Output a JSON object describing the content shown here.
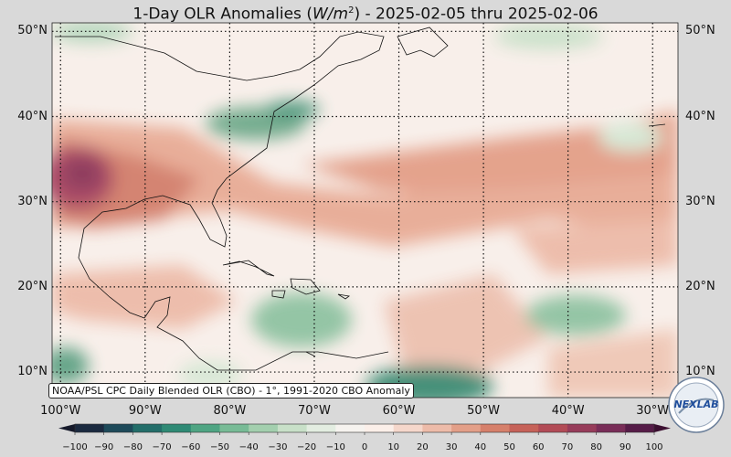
{
  "title_text": "1-Day OLR Anomalies (",
  "title_unit_base": "W/m",
  "title_unit_exp": "2",
  "title_rest": ") - 2025-02-05 thru 2025-02-06",
  "map": {
    "lat_labels": [
      "50°N",
      "40°N",
      "30°N",
      "20°N",
      "10°N"
    ],
    "lat_values": [
      50,
      40,
      30,
      20,
      10
    ],
    "lon_labels": [
      "100°W",
      "90°W",
      "80°W",
      "70°W",
      "60°W",
      "50°W",
      "40°W",
      "30°W"
    ],
    "lon_values": [
      -100,
      -90,
      -80,
      -70,
      -60,
      -50,
      -40,
      -30
    ],
    "extent": {
      "lon": [
        -101,
        -27
      ],
      "lat": [
        7,
        51
      ]
    },
    "gridlines": "dotted"
  },
  "source_note": "NOAA/PSL CPC Daily Blended OLR (CBO) - 1°, 1991-2020 CBO Anomaly",
  "colorbar": {
    "ticks": [
      "−100",
      "−90",
      "−80",
      "−70",
      "−60",
      "−50",
      "−40",
      "−30",
      "−20",
      "−10",
      "0",
      "10",
      "20",
      "30",
      "40",
      "50",
      "60",
      "70",
      "80",
      "90",
      "100"
    ],
    "range": [
      -100,
      100
    ],
    "colors_neg": [
      "#1b2a40",
      "#1e4a5a",
      "#236e6a",
      "#2f8a75",
      "#4fa583",
      "#78bb96",
      "#a3cfae",
      "#c8e0c8",
      "#e3ede1",
      "#f6f3ef"
    ],
    "colors_pos": [
      "#fbefe9",
      "#f5d7cb",
      "#edbba9",
      "#e39f88",
      "#d6806b",
      "#c66259",
      "#b24b56",
      "#973c5a",
      "#792d58",
      "#561c48"
    ]
  },
  "logo_text": "NEXLAB",
  "colors": {
    "background": "#d9d9d9",
    "neutral": "#f8efea"
  }
}
